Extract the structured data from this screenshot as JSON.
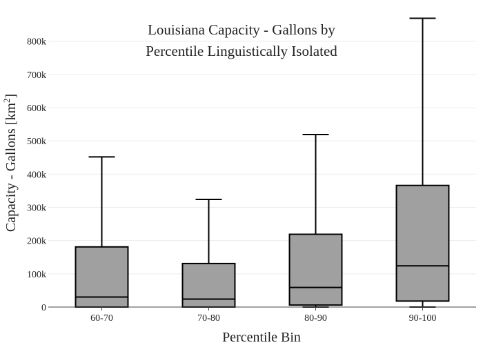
{
  "chart_data": {
    "type": "box",
    "title_lines": [
      "Louisiana Capacity - Gallons by",
      "Percentile Linguistically Isolated"
    ],
    "xlabel": "Percentile Bin",
    "ylabel_main": "Capacity - Gallons  [km",
    "ylabel_sup": "2",
    "ylabel_close": "]",
    "ylim": [
      0,
      870000
    ],
    "y_ticks": [
      {
        "value": 0,
        "label": "0"
      },
      {
        "value": 100000,
        "label": "100k"
      },
      {
        "value": 200000,
        "label": "200k"
      },
      {
        "value": 300000,
        "label": "300k"
      },
      {
        "value": 400000,
        "label": "400k"
      },
      {
        "value": 500000,
        "label": "500k"
      },
      {
        "value": 600000,
        "label": "600k"
      },
      {
        "value": 700000,
        "label": "700k"
      },
      {
        "value": 800000,
        "label": "800k"
      }
    ],
    "grid": true,
    "box_color": "#a0a0a0",
    "line_color": "#000000",
    "categories": [
      "60-70",
      "70-80",
      "80-90",
      "90-100"
    ],
    "boxes": [
      {
        "category": "60-70",
        "min": 0,
        "q1": 0,
        "median": 30000,
        "q3": 181000,
        "max": 452000
      },
      {
        "category": "70-80",
        "min": 0,
        "q1": 0,
        "median": 24000,
        "q3": 131000,
        "max": 324000
      },
      {
        "category": "80-90",
        "min": 0,
        "q1": 6000,
        "median": 59000,
        "q3": 219000,
        "max": 519000
      },
      {
        "category": "90-100",
        "min": 0,
        "q1": 18000,
        "median": 124000,
        "q3": 366000,
        "max": 869000
      }
    ]
  }
}
